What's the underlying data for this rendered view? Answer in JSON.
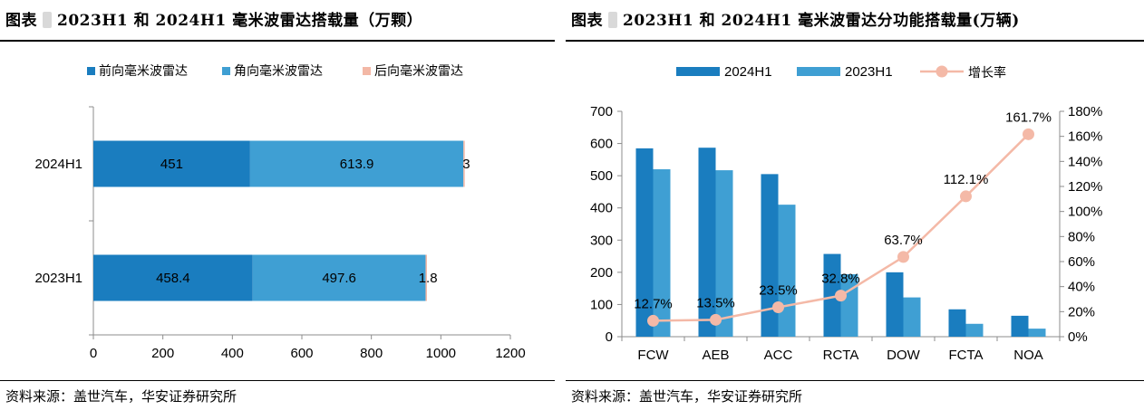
{
  "left_panel": {
    "title_label": "图表",
    "title_text": "2023H1 和 2024H1 毫米波雷达搭载量（万颗）",
    "source": "资料来源：盖世汽车，华安证券研究所"
  },
  "right_panel": {
    "title_label": "图表",
    "title_text": "2023H1 和 2024H1 毫米波雷达分功能搭载量(万辆)",
    "source": "资料来源：盖世汽车，华安证券研究所"
  },
  "chart_data": [
    {
      "type": "bar",
      "orientation": "horizontal",
      "stacked": true,
      "title": "",
      "categories": [
        "2024H1",
        "2023H1"
      ],
      "series": [
        {
          "name": "前向毫米波雷达",
          "values": [
            451,
            458.4
          ],
          "labels": [
            "451",
            "458.4"
          ],
          "color": "#1a7dbf"
        },
        {
          "name": "角向毫米波雷达",
          "values": [
            613.9,
            497.6
          ],
          "labels": [
            "613.9",
            "497.6"
          ],
          "color": "#3f9fd3"
        },
        {
          "name": "后向毫米波雷达",
          "values": [
            3,
            1.8
          ],
          "labels": [
            "3",
            "1.8"
          ],
          "color": "#f3b8a6"
        }
      ],
      "x_ticks": [
        0,
        200,
        400,
        600,
        800,
        1000,
        1200
      ],
      "xlim": [
        0,
        1200
      ],
      "grid": false,
      "legend": "top"
    },
    {
      "type": "bar",
      "title": "",
      "categories": [
        "FCW",
        "AEB",
        "ACC",
        "RCTA",
        "DOW",
        "FCTA",
        "NOA"
      ],
      "series": [
        {
          "name": "2024H1",
          "values": [
            585,
            587,
            505,
            257,
            200,
            85,
            65
          ],
          "color": "#1a7dbf",
          "axis": "left"
        },
        {
          "name": "2023H1",
          "values": [
            520,
            517,
            410,
            194,
            122,
            40,
            25
          ],
          "color": "#3f9fd3",
          "axis": "left"
        },
        {
          "name": "增长率",
          "type": "line",
          "values": [
            12.7,
            13.5,
            23.5,
            32.8,
            63.7,
            112.1,
            161.7
          ],
          "labels": [
            "12.7%",
            "13.5%",
            "23.5%",
            "32.8%",
            "63.7%",
            "112.1%",
            "161.7%"
          ],
          "color": "#f4b9a7",
          "axis": "right"
        }
      ],
      "y_left_ticks": [
        0,
        100,
        200,
        300,
        400,
        500,
        600,
        700
      ],
      "ylim_left": [
        0,
        700
      ],
      "y_right_ticks": [
        "0%",
        "20%",
        "40%",
        "60%",
        "80%",
        "100%",
        "120%",
        "140%",
        "160%",
        "180%"
      ],
      "ylim_right": [
        0,
        180
      ],
      "grid": false,
      "legend": "top"
    }
  ]
}
